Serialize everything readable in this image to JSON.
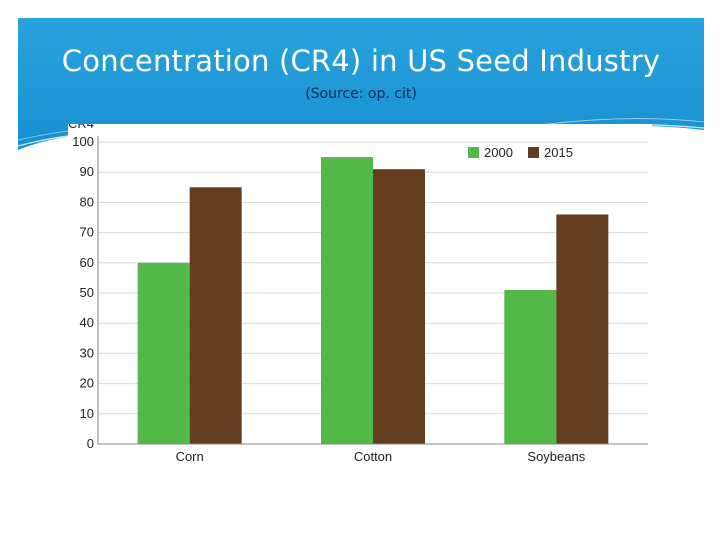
{
  "slide": {
    "title": "Concentration (CR4) in US Seed Industry",
    "subtitle": "(Source: op. cit)",
    "header_color": "#1d9ad6"
  },
  "chart_data": {
    "type": "bar",
    "title": "",
    "xlabel": "",
    "ylabel": "CR4",
    "categories": [
      "Corn",
      "Cotton",
      "Soybeans"
    ],
    "series": [
      {
        "name": "2000",
        "values": [
          60,
          95,
          51
        ],
        "color": "#52b848"
      },
      {
        "name": "2015",
        "values": [
          85,
          91,
          76
        ],
        "color": "#643d1f"
      }
    ],
    "ylim": [
      0,
      100
    ],
    "yticks": [
      0,
      10,
      20,
      30,
      40,
      50,
      60,
      70,
      80,
      90,
      100
    ],
    "grid": true,
    "legend_position": "top-right"
  }
}
